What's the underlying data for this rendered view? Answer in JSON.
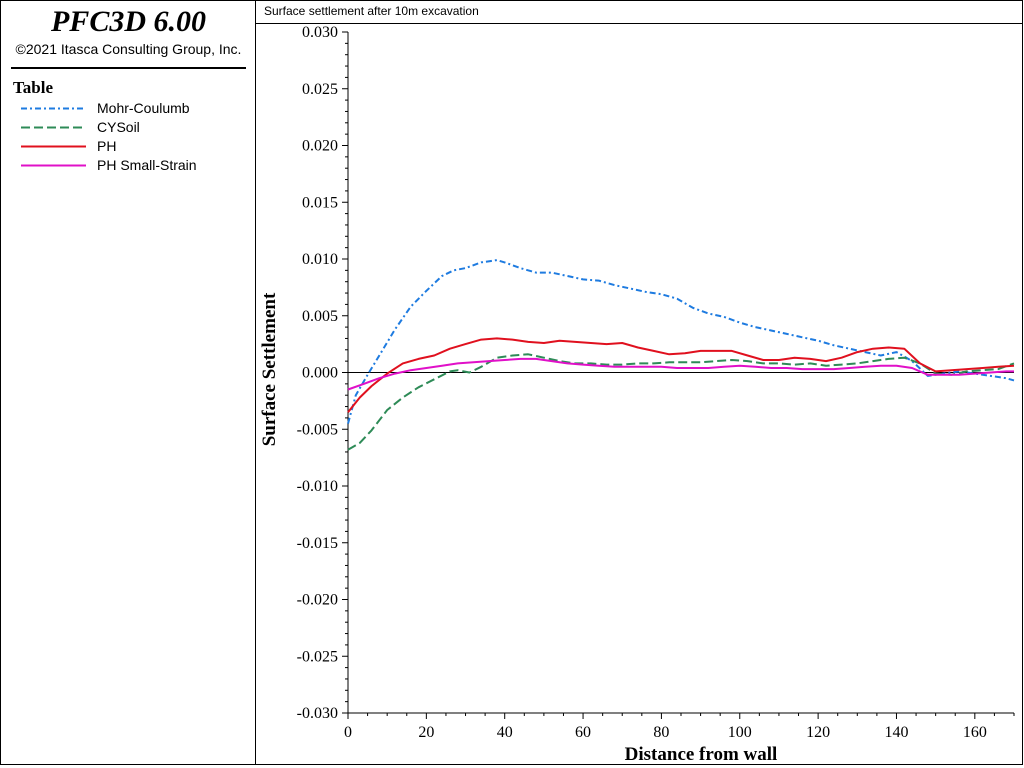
{
  "app": {
    "title": "PFC3D 6.00",
    "copyright": "©2021 Itasca Consulting Group, Inc."
  },
  "legend": {
    "title": "Table",
    "items": [
      {
        "label": "Mohr-Coulumb",
        "color": "#1e7be0",
        "style": "dash-dot"
      },
      {
        "label": "CYSoil",
        "color": "#2e8b57",
        "style": "dashed"
      },
      {
        "label": "PH",
        "color": "#e0101e",
        "style": "solid"
      },
      {
        "label": "PH Small-Strain",
        "color": "#e010c8",
        "style": "solid"
      }
    ]
  },
  "chart_data": {
    "type": "line",
    "title": "Surface settlement after 10m excavation",
    "xlabel": "Distance from wall",
    "ylabel": "Surface Settlement",
    "xlim": [
      0,
      170
    ],
    "ylim": [
      -0.03,
      0.03
    ],
    "xticks": [
      0,
      20,
      40,
      60,
      80,
      100,
      120,
      140,
      160
    ],
    "xtick_labels": [
      "0",
      "20",
      "40",
      "60",
      "80",
      "100",
      "120",
      "140",
      "160"
    ],
    "yticks": [
      -0.03,
      -0.025,
      -0.02,
      -0.015,
      -0.01,
      -0.005,
      0.0,
      0.005,
      0.01,
      0.015,
      0.02,
      0.025,
      0.03
    ],
    "ytick_labels": [
      "-0.030",
      "-0.025",
      "-0.020",
      "-0.015",
      "-0.010",
      "-0.005",
      "0.000",
      "0.005",
      "0.010",
      "0.015",
      "0.020",
      "0.025",
      "0.030"
    ],
    "zero_line": true,
    "series": [
      {
        "name": "Mohr-Coulumb",
        "x": [
          0,
          2,
          5,
          8,
          12,
          16,
          20,
          24,
          27,
          30,
          34,
          38,
          40,
          44,
          48,
          52,
          56,
          60,
          64,
          68,
          72,
          76,
          80,
          84,
          88,
          92,
          96,
          100,
          104,
          108,
          112,
          116,
          120,
          124,
          128,
          132,
          136,
          140,
          144,
          148,
          152,
          156,
          160,
          164,
          168,
          170
        ],
        "y": [
          -0.0045,
          -0.002,
          -0.0002,
          0.0015,
          0.0038,
          0.0058,
          0.0072,
          0.0085,
          0.009,
          0.0092,
          0.0097,
          0.0099,
          0.0097,
          0.0092,
          0.0088,
          0.0088,
          0.0085,
          0.0082,
          0.0081,
          0.0077,
          0.0074,
          0.0071,
          0.0069,
          0.0065,
          0.0057,
          0.0052,
          0.0049,
          0.0044,
          0.004,
          0.0037,
          0.0034,
          0.0031,
          0.0028,
          0.0024,
          0.0021,
          0.0018,
          0.0015,
          0.0018,
          0.001,
          -0.0003,
          -0.0001,
          0.0001,
          -0.0001,
          -0.0003,
          -0.0005,
          -0.0007
        ]
      },
      {
        "name": "CYSoil",
        "x": [
          0,
          3,
          6,
          10,
          14,
          18,
          22,
          26,
          28,
          31,
          34,
          38,
          42,
          46,
          50,
          54,
          58,
          62,
          66,
          70,
          74,
          78,
          82,
          86,
          90,
          94,
          98,
          102,
          106,
          110,
          114,
          118,
          122,
          126,
          130,
          134,
          138,
          142,
          146,
          150,
          154,
          158,
          162,
          166,
          170
        ],
        "y": [
          -0.0068,
          -0.0062,
          -0.0051,
          -0.0033,
          -0.0022,
          -0.0013,
          -0.0006,
          0.0001,
          0.0002,
          0.0,
          0.0005,
          0.0013,
          0.0015,
          0.0016,
          0.0013,
          0.001,
          0.0008,
          0.0008,
          0.0007,
          0.0007,
          0.0008,
          0.0008,
          0.0009,
          0.0009,
          0.0009,
          0.001,
          0.0011,
          0.001,
          0.0008,
          0.0008,
          0.0007,
          0.0008,
          0.0006,
          0.0007,
          0.0008,
          0.001,
          0.0012,
          0.0013,
          0.0008,
          -0.0001,
          -0.0002,
          0.0001,
          0.0002,
          0.0003,
          0.0008
        ]
      },
      {
        "name": "PH",
        "x": [
          0,
          3,
          6,
          10,
          14,
          18,
          22,
          26,
          30,
          34,
          38,
          42,
          46,
          50,
          54,
          58,
          62,
          66,
          70,
          74,
          78,
          82,
          86,
          90,
          94,
          98,
          102,
          106,
          110,
          114,
          118,
          122,
          126,
          130,
          134,
          138,
          142,
          146,
          150,
          154,
          158,
          162,
          166,
          170
        ],
        "y": [
          -0.0035,
          -0.0022,
          -0.0012,
          -0.0001,
          0.0008,
          0.0012,
          0.0015,
          0.0021,
          0.0025,
          0.0029,
          0.003,
          0.0029,
          0.0027,
          0.0026,
          0.0028,
          0.0027,
          0.0026,
          0.0025,
          0.0026,
          0.0022,
          0.0019,
          0.0016,
          0.0017,
          0.0019,
          0.0019,
          0.0019,
          0.0015,
          0.0011,
          0.0011,
          0.0013,
          0.0012,
          0.001,
          0.0013,
          0.0018,
          0.0021,
          0.0022,
          0.0021,
          0.0008,
          0.0001,
          0.0002,
          0.0003,
          0.0004,
          0.0005,
          0.0006
        ]
      },
      {
        "name": "PH Small-Strain",
        "x": [
          0,
          4,
          8,
          12,
          16,
          20,
          24,
          28,
          32,
          36,
          40,
          44,
          48,
          52,
          56,
          60,
          64,
          68,
          72,
          76,
          80,
          84,
          88,
          92,
          96,
          100,
          104,
          108,
          112,
          116,
          120,
          124,
          128,
          132,
          136,
          140,
          144,
          148,
          152,
          156,
          160,
          164,
          168,
          170
        ],
        "y": [
          -0.0015,
          -0.001,
          -0.0005,
          -0.0001,
          0.0002,
          0.0004,
          0.0006,
          0.0008,
          0.0009,
          0.001,
          0.0011,
          0.0012,
          0.0012,
          0.001,
          0.0008,
          0.0007,
          0.0006,
          0.0005,
          0.0005,
          0.0005,
          0.0005,
          0.0004,
          0.0004,
          0.0004,
          0.0005,
          0.0006,
          0.0005,
          0.0004,
          0.0004,
          0.0003,
          0.0003,
          0.0003,
          0.0004,
          0.0005,
          0.0006,
          0.0006,
          0.0004,
          -0.0002,
          -0.0002,
          -0.0002,
          -0.0001,
          0.0,
          0.0001,
          0.0001
        ]
      }
    ]
  }
}
